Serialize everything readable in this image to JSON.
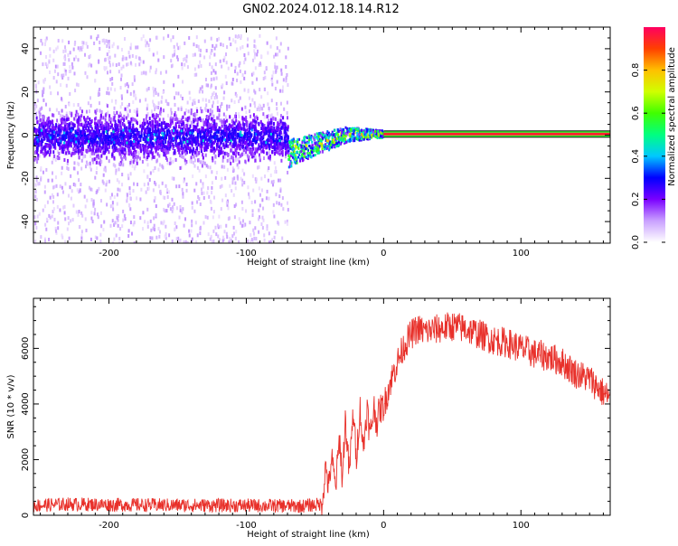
{
  "title": "GN02.2024.012.18.14.R12",
  "chart_data": [
    {
      "type": "heatmap",
      "xlabel": "Height of straight line (km)",
      "ylabel": "Frequency (Hz)",
      "xlim": [
        -255,
        165
      ],
      "ylim": [
        -50,
        50
      ],
      "xticks": [
        -200,
        -100,
        0,
        100
      ],
      "yticks": [
        -40,
        -20,
        0,
        20,
        40
      ],
      "regions": [
        {
          "description": "diffuse noise",
          "x_range": [
            -255,
            -70
          ],
          "freq_range": [
            -50,
            47
          ],
          "amplitude": 0.05
        },
        {
          "description": "broad band",
          "x_range": [
            -255,
            -70
          ],
          "freq_range": [
            -12,
            12
          ],
          "amplitude": 0.15
        },
        {
          "description": "transition",
          "x_range": [
            -70,
            0
          ],
          "freq_start": -8,
          "freq_end": 1,
          "amplitude": 0.7
        },
        {
          "description": "stable line",
          "x_range": [
            0,
            165
          ],
          "freq": 0.5,
          "amplitude": 0.95
        }
      ],
      "colorbar": {
        "label": "Normalized spectral amplitude",
        "range": [
          0,
          1
        ],
        "ticks": [
          0.0,
          0.2,
          0.4,
          0.6,
          0.8
        ],
        "colormap": [
          "#ffffff",
          "#c9a0ff",
          "#7a00ff",
          "#0000ff",
          "#00c8ff",
          "#00ff80",
          "#40ff00",
          "#d0ff00",
          "#ffc000",
          "#ff4000",
          "#ff0060"
        ]
      }
    },
    {
      "type": "line",
      "xlabel": "Height of straight line (km)",
      "ylabel": "SNR (10 * v/v)",
      "xlim": [
        -255,
        165
      ],
      "ylim": [
        0,
        7800
      ],
      "xticks": [
        -200,
        -100,
        0,
        100
      ],
      "yticks": [
        0,
        2000,
        4000,
        6000
      ],
      "color": "#e8302a",
      "x": [
        -255,
        -230,
        -200,
        -150,
        -100,
        -60,
        -45,
        -42,
        -40,
        -38,
        -35,
        -32,
        -30,
        -28,
        -25,
        -22,
        -20,
        -17,
        -15,
        -12,
        -10,
        -7,
        -5,
        -3,
        0,
        5,
        10,
        15,
        20,
        25,
        30,
        40,
        50,
        60,
        70,
        80,
        90,
        100,
        110,
        120,
        130,
        140,
        150,
        160,
        165
      ],
      "y": [
        350,
        400,
        380,
        360,
        350,
        330,
        400,
        1800,
        900,
        2100,
        1000,
        2800,
        1200,
        3500,
        1500,
        3800,
        2000,
        3900,
        2300,
        3900,
        2800,
        3900,
        3300,
        3800,
        3900,
        4800,
        5500,
        6100,
        6500,
        6700,
        6600,
        6700,
        6800,
        6700,
        6500,
        6300,
        6200,
        6000,
        5800,
        5700,
        5500,
        5100,
        4900,
        4400,
        4200
      ],
      "noise_amplitude": 250
    }
  ]
}
